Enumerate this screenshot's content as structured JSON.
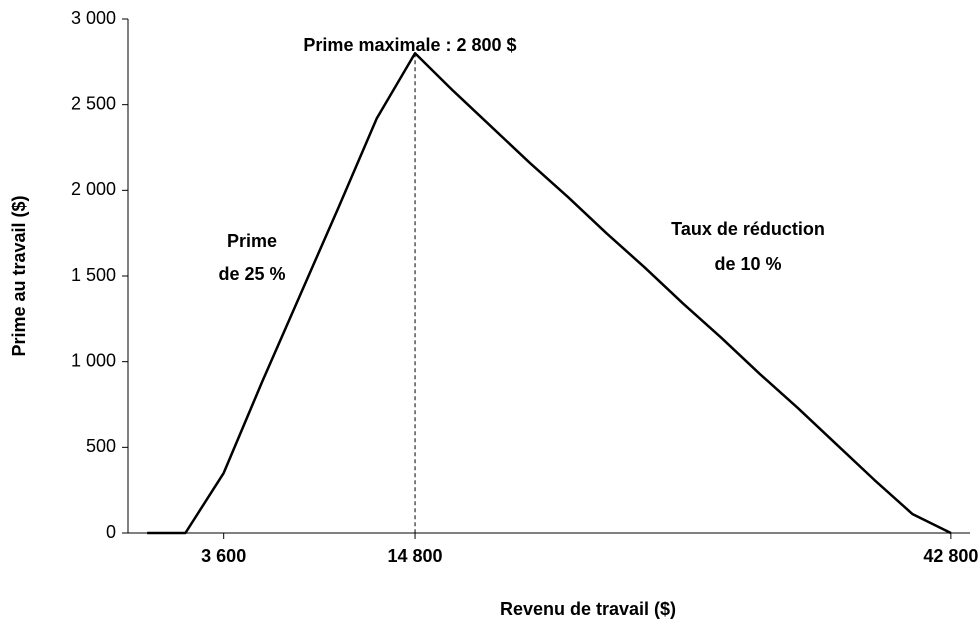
{
  "chart_data": {
    "type": "line",
    "x_label": "Revenu de travail ($)",
    "y_label": "Prime au travail ($)",
    "annotations": [
      "Prime maximale : 2 800 $",
      "Prime",
      "de 25 %",
      "Taux de réduction",
      "de 10 %"
    ],
    "categories": [
      null,
      null,
      "3 600",
      null,
      null,
      null,
      null,
      "14 800",
      null,
      null,
      null,
      null,
      null,
      null,
      null,
      null,
      null,
      null,
      null,
      null,
      null,
      "42 800"
    ],
    "series": [
      {
        "color": "#000000",
        "values": [
          0,
          0,
          350,
          880,
          1390,
          1900,
          2420,
          2800,
          2580,
          2370,
          2160,
          1960,
          1750,
          1550,
          1340,
          1140,
          930,
          730,
          520,
          310,
          110,
          0
        ]
      }
    ],
    "ylim": [
      0,
      3000
    ],
    "yticks": [
      0,
      500,
      {
        "value": 1000,
        "label": "1 000"
      },
      {
        "value": 1500,
        "label": "1 500"
      },
      {
        "value": 2000,
        "label": "2 000"
      },
      {
        "value": 2500,
        "label": "2 500"
      },
      {
        "value": 3000,
        "label": "3 000"
      }
    ],
    "grid": false
  }
}
